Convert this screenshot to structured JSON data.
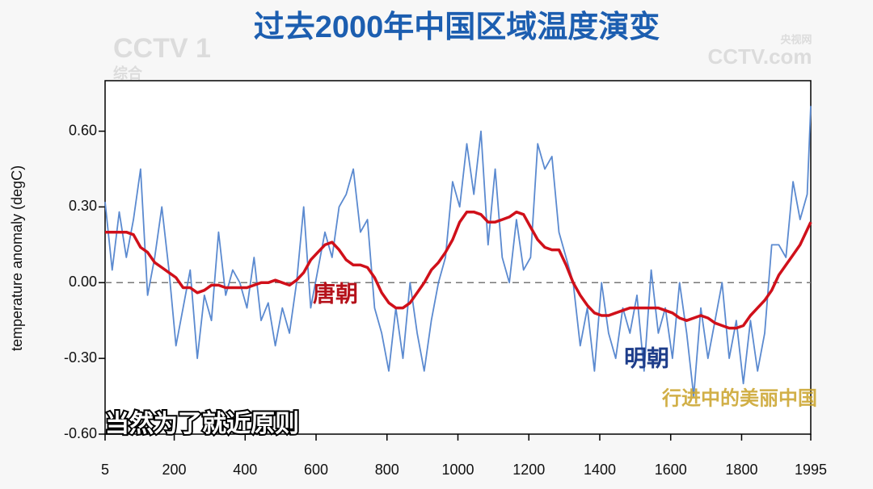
{
  "chart_data": {
    "type": "line",
    "title": "过去2000年中国区域温度演变",
    "ylabel": "temperature anomaly (degC)",
    "caption": "当然为了就近原则",
    "annotations": [
      "唐朝",
      "明朝"
    ],
    "watermarks": [
      "CCTV 1",
      "综合",
      "CCTV.com",
      "央视网",
      "行进中的美丽中国"
    ],
    "x": [
      5,
      25,
      45,
      65,
      85,
      105,
      125,
      145,
      165,
      185,
      205,
      225,
      245,
      265,
      285,
      305,
      325,
      345,
      365,
      385,
      405,
      425,
      445,
      465,
      485,
      505,
      525,
      545,
      565,
      585,
      605,
      625,
      645,
      665,
      685,
      705,
      725,
      745,
      765,
      785,
      805,
      825,
      845,
      865,
      885,
      905,
      925,
      945,
      965,
      985,
      1005,
      1025,
      1045,
      1065,
      1085,
      1105,
      1125,
      1145,
      1165,
      1185,
      1205,
      1225,
      1245,
      1265,
      1285,
      1305,
      1325,
      1345,
      1365,
      1385,
      1405,
      1425,
      1445,
      1465,
      1485,
      1505,
      1525,
      1545,
      1565,
      1585,
      1605,
      1625,
      1645,
      1665,
      1685,
      1705,
      1725,
      1745,
      1765,
      1785,
      1805,
      1825,
      1845,
      1865,
      1885,
      1905,
      1925,
      1945,
      1965,
      1985,
      1995
    ],
    "series": [
      {
        "color": "#5b8ad0",
        "values": [
          0.32,
          0.05,
          0.28,
          0.1,
          0.25,
          0.45,
          -0.05,
          0.1,
          0.3,
          0.05,
          -0.25,
          -0.1,
          0.05,
          -0.3,
          -0.05,
          -0.15,
          0.2,
          -0.05,
          0.05,
          0.0,
          -0.1,
          0.1,
          -0.15,
          -0.08,
          -0.25,
          -0.1,
          -0.2,
          0.0,
          0.3,
          -0.1,
          0.05,
          0.2,
          0.1,
          0.3,
          0.35,
          0.45,
          0.2,
          0.25,
          -0.1,
          -0.2,
          -0.35,
          -0.1,
          -0.3,
          0.0,
          -0.2,
          -0.35,
          -0.15,
          0.0,
          0.1,
          0.4,
          0.3,
          0.55,
          0.35,
          0.6,
          0.15,
          0.45,
          0.1,
          0.0,
          0.25,
          0.05,
          0.1,
          0.55,
          0.45,
          0.5,
          0.2,
          0.1,
          0.0,
          -0.25,
          -0.1,
          -0.35,
          0.0,
          -0.2,
          -0.3,
          -0.1,
          -0.2,
          -0.05,
          -0.35,
          0.05,
          -0.2,
          -0.1,
          -0.3,
          0.0,
          -0.2,
          -0.45,
          -0.1,
          -0.3,
          -0.15,
          0.0,
          -0.3,
          -0.15,
          -0.4,
          -0.15,
          -0.35,
          -0.2,
          0.15,
          0.15,
          0.1,
          0.4,
          0.25,
          0.35,
          0.7
        ]
      },
      {
        "color": "#d0101a",
        "values": [
          0.2,
          0.2,
          0.2,
          0.2,
          0.19,
          0.14,
          0.12,
          0.08,
          0.06,
          0.04,
          0.02,
          -0.02,
          -0.02,
          -0.04,
          -0.03,
          -0.01,
          -0.01,
          -0.02,
          -0.02,
          -0.02,
          -0.02,
          -0.01,
          0.0,
          0.0,
          0.01,
          0.0,
          -0.01,
          0.01,
          0.04,
          0.09,
          0.12,
          0.15,
          0.16,
          0.13,
          0.09,
          0.07,
          0.07,
          0.06,
          0.02,
          -0.04,
          -0.08,
          -0.1,
          -0.1,
          -0.08,
          -0.04,
          0.0,
          0.05,
          0.08,
          0.12,
          0.17,
          0.24,
          0.28,
          0.28,
          0.27,
          0.24,
          0.24,
          0.25,
          0.26,
          0.28,
          0.27,
          0.22,
          0.17,
          0.14,
          0.13,
          0.13,
          0.07,
          0.0,
          -0.05,
          -0.09,
          -0.12,
          -0.13,
          -0.13,
          -0.12,
          -0.11,
          -0.1,
          -0.1,
          -0.1,
          -0.1,
          -0.1,
          -0.11,
          -0.12,
          -0.14,
          -0.15,
          -0.14,
          -0.13,
          -0.14,
          -0.16,
          -0.17,
          -0.18,
          -0.18,
          -0.17,
          -0.13,
          -0.1,
          -0.07,
          -0.03,
          0.03,
          0.07,
          0.11,
          0.15,
          0.21,
          0.24
        ]
      }
    ],
    "reference_line": 0,
    "xlim": [
      5,
      1995
    ],
    "xticks": [
      5,
      200,
      400,
      600,
      800,
      1000,
      1200,
      1400,
      1600,
      1800,
      1995
    ],
    "ylim": [
      -0.6,
      0.8
    ],
    "yticks": [
      {
        "value": -0.6,
        "label": "-0.60"
      },
      {
        "value": -0.3,
        "label": "-0.30"
      },
      {
        "value": 0,
        "label": "0.00"
      },
      {
        "value": 0.3,
        "label": "0.30"
      },
      {
        "value": 0.6,
        "label": "0.60"
      }
    ]
  }
}
